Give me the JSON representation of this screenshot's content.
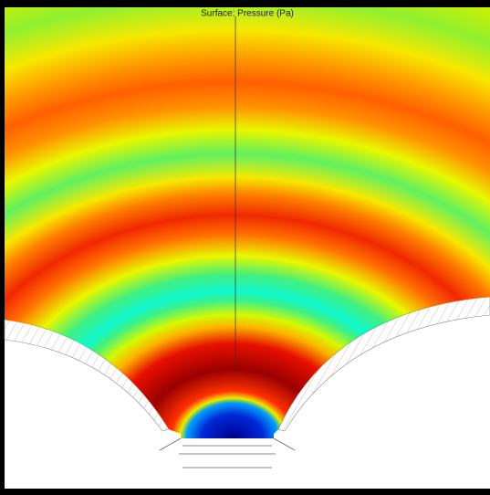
{
  "title": "Surface: Pressure (Pa)"
}
